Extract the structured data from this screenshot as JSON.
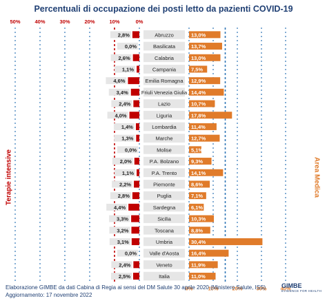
{
  "title": "Percentuali di occupazione dei posti letto da pazienti COVID-19",
  "left_axis_title": "Terapie intensive",
  "right_axis_title": "Area Medica",
  "footer": {
    "line1": "Elaborazione GIMBE da dati Cabina di Regia ai sensi del DM Salute 30 aprile 2020 (Ministero Salute, ISS)",
    "line2": "Aggiornamento: 17 novembre 2022"
  },
  "logo": {
    "name": "GIMBE",
    "tagline": "EVIDENCE FOR HEALTH"
  },
  "colors": {
    "title": "#1f3f73",
    "left_bar": "#c00000",
    "right_bar": "#e07b2a",
    "left_axis": "#c00000",
    "right_axis": "#e07b2a",
    "threshold_left": "#c00000",
    "threshold_right": "#2e75b6",
    "row_band": "#e6e6e6"
  },
  "chart_data": {
    "type": "bar",
    "categories": [
      "Abruzzo",
      "Basilicata",
      "Calabria",
      "Campania",
      "Emilia Romagna",
      "Friuli Venezia Giulia",
      "Lazio",
      "Liguria",
      "Lombardia",
      "Marche",
      "Molise",
      "P.A. Bolzano",
      "P.A. Trento",
      "Piemonte",
      "Puglia",
      "Sardegna",
      "Sicilia",
      "Toscana",
      "Umbria",
      "Valle d'Aosta",
      "Veneto",
      "Italia"
    ],
    "series": [
      {
        "name": "Terapie intensive",
        "values": [
          2.8,
          0.0,
          2.6,
          1.1,
          4.6,
          3.4,
          2.4,
          4.0,
          1.4,
          1.3,
          0.0,
          2.0,
          1.1,
          2.2,
          2.8,
          4.4,
          3.3,
          3.2,
          3.1,
          0.0,
          2.4,
          2.5
        ],
        "labels": [
          "2,8%",
          "0,0%",
          "2,6%",
          "1,1%",
          "4,6%",
          "3,4%",
          "2,4%",
          "4,0%",
          "1,4%",
          "1,3%",
          "0,0%",
          "2,0%",
          "1,1%",
          "2,2%",
          "2,8%",
          "4,4%",
          "3,3%",
          "3,2%",
          "3,1%",
          "0,0%",
          "2,4%",
          "2,5%"
        ]
      },
      {
        "name": "Area Medica",
        "values": [
          13.0,
          13.7,
          13.0,
          7.5,
          12.9,
          14.4,
          10.7,
          17.8,
          11.4,
          12.7,
          5.1,
          9.3,
          14.1,
          8.6,
          7.1,
          6.1,
          10.3,
          8.8,
          30.4,
          16.4,
          11.9,
          11.0
        ],
        "labels": [
          "13,0%",
          "13,7%",
          "13,0%",
          "7,5%",
          "12,9%",
          "14,4%",
          "10,7%",
          "17,8%",
          "11,4%",
          "12,7%",
          "5,1%",
          "9,3%",
          "14,1%",
          "8,6%",
          "7,1%",
          "6,1%",
          "10,3%",
          "8,8%",
          "30,4%",
          "16,4%",
          "11,9%",
          "11,0%"
        ]
      }
    ],
    "left_axis": {
      "ticks": [
        "50%",
        "40%",
        "30%",
        "20%",
        "10%",
        "0%"
      ],
      "tick_values": [
        50,
        40,
        30,
        20,
        10,
        0
      ],
      "range": [
        0,
        50
      ],
      "direction": "reversed"
    },
    "right_axis": {
      "ticks": [
        "0%",
        "10%",
        "20%",
        "30%",
        "40%"
      ],
      "tick_values": [
        0,
        10,
        20,
        30,
        40
      ],
      "range": [
        0,
        40
      ]
    },
    "thresholds": {
      "left": 10,
      "right": 15
    },
    "grid": "dotted vertical"
  }
}
